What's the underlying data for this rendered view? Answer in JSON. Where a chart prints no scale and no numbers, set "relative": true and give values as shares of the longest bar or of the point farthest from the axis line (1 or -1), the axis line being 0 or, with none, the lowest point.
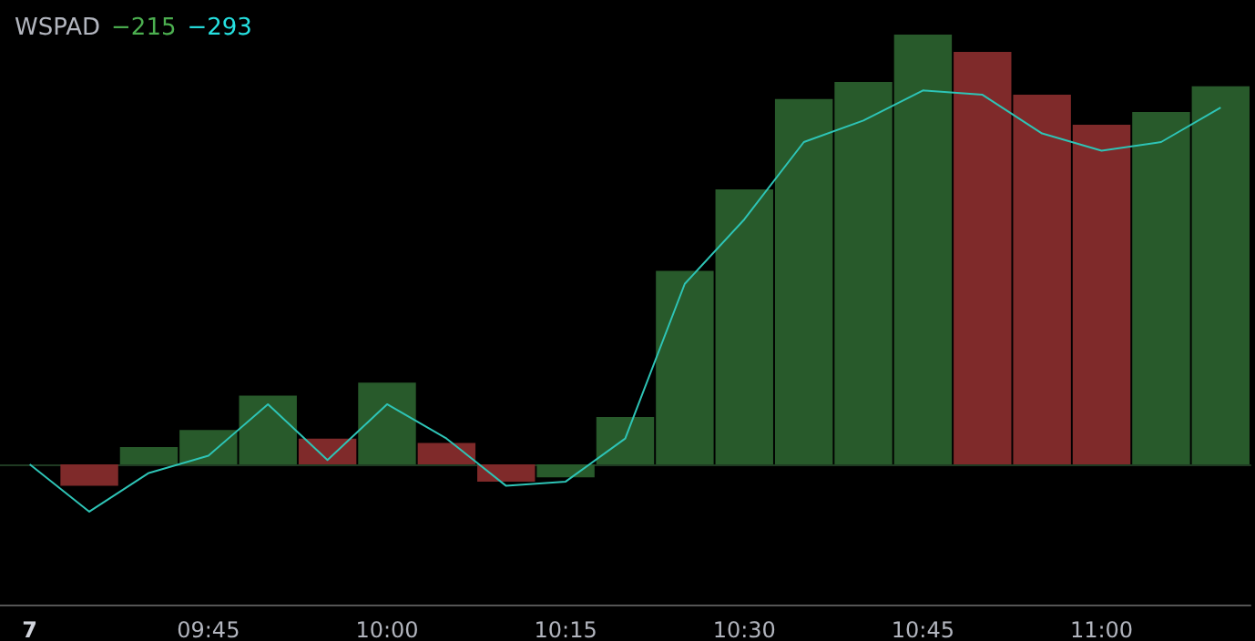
{
  "chart_data": {
    "type": "bar",
    "title": "WSPAD",
    "annotations": [
      "−215",
      "−293"
    ],
    "relative": true,
    "grid": false,
    "categories": [
      "7",
      null,
      null,
      "09:45",
      null,
      null,
      "10:00",
      null,
      null,
      "10:15",
      null,
      null,
      "10:30",
      null,
      null,
      "10:45",
      null,
      null,
      "11:00",
      null,
      null
    ],
    "series": [
      {
        "color": "#285a2b",
        "colors": [
          "#285a2b",
          "#7f2a2a",
          "#285a2b",
          "#285a2b",
          "#285a2b",
          "#7f2a2a",
          "#285a2b",
          "#7f2a2a",
          "#7f2a2a",
          "#285a2b",
          "#285a2b",
          "#285a2b",
          "#285a2b",
          "#285a2b",
          "#285a2b",
          "#285a2b",
          "#7f2a2a",
          "#7f2a2a",
          "#7f2a2a",
          "#285a2b",
          "#285a2b"
        ],
        "values": [
          0,
          -0.05,
          0.04,
          0.08,
          0.16,
          0.06,
          0.19,
          0.05,
          -0.04,
          -0.03,
          0.11,
          0.45,
          0.64,
          0.85,
          0.89,
          1,
          0.96,
          0.86,
          0.79,
          0.82,
          0.88
        ]
      },
      {
        "type": "line",
        "color": "#2ec4b6",
        "marker": "none",
        "values": [
          0,
          -0.11,
          -0.02,
          0.02,
          0.14,
          0.01,
          0.14,
          0.06,
          -0.05,
          -0.04,
          0.06,
          0.42,
          0.57,
          0.75,
          0.8,
          0.87,
          0.86,
          0.77,
          0.73,
          0.75,
          0.83
        ]
      }
    ]
  }
}
